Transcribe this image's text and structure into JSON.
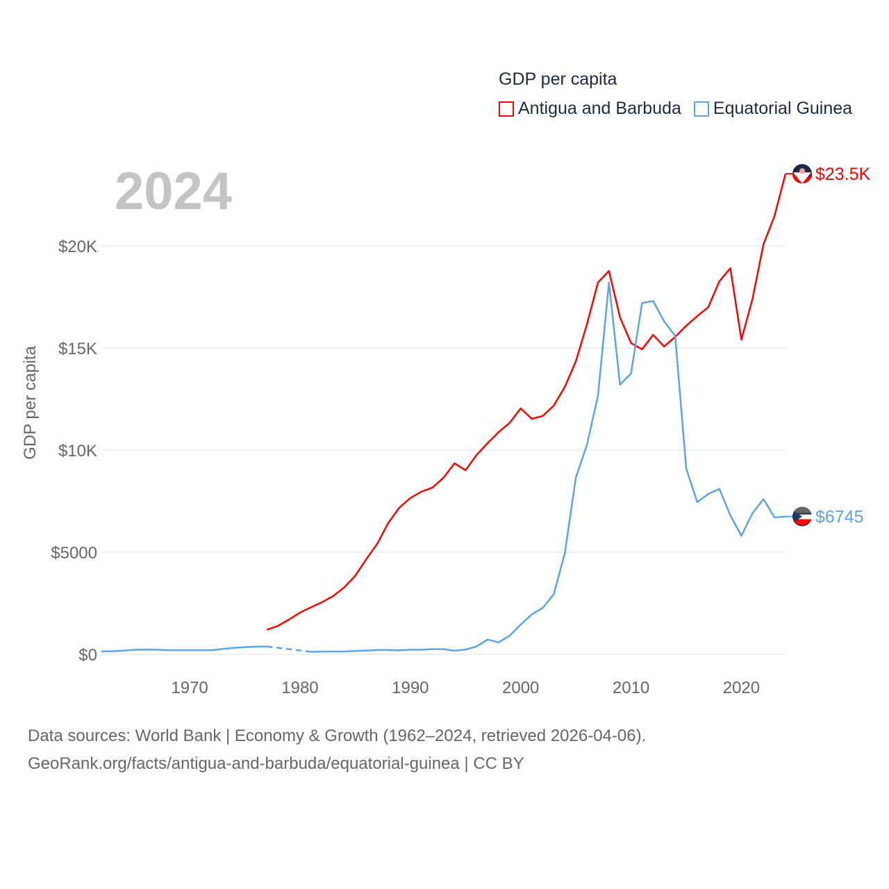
{
  "chart_data": {
    "type": "line",
    "title": "GDP per capita",
    "ylabel": "GDP per capita",
    "xlabel": "",
    "year_label": "2024",
    "xlim": [
      1962,
      2024
    ],
    "ylim": [
      0,
      23500
    ],
    "x_ticks": [
      1970,
      1980,
      1990,
      2000,
      2010,
      2020
    ],
    "y_ticks": [
      {
        "v": 0,
        "label": "$0"
      },
      {
        "v": 5000,
        "label": "$5000"
      },
      {
        "v": 10000,
        "label": "$10K"
      },
      {
        "v": 15000,
        "label": "$15K"
      },
      {
        "v": 20000,
        "label": "$20K"
      }
    ],
    "grid": true,
    "legend_position": "top-right",
    "series": [
      {
        "name": "Antigua and Barbuda",
        "color": "#ff0000",
        "end_label": "$23.5K",
        "start": 1977,
        "values": [
          1200,
          1390,
          1700,
          2040,
          2300,
          2550,
          2850,
          3270,
          3840,
          4650,
          5410,
          6430,
          7180,
          7650,
          7960,
          8160,
          8640,
          9350,
          9010,
          9760,
          10340,
          10880,
          11330,
          12040,
          11530,
          11670,
          12180,
          13090,
          14350,
          16150,
          18200,
          18770,
          16500,
          15240,
          14930,
          15640,
          15070,
          15540,
          16090,
          16560,
          17000,
          18260,
          18910,
          15410,
          17380,
          20070,
          21460,
          23530
        ]
      },
      {
        "name": "Equatorial Guinea",
        "color": "#5ba4ea",
        "end_label": "$6745",
        "start": 1962,
        "values": [
          140,
          150,
          180,
          220,
          230,
          220,
          200,
          200,
          200,
          200,
          200,
          260,
          310,
          350,
          370,
          380,
          null,
          null,
          null,
          120,
          130,
          130,
          130,
          160,
          180,
          210,
          210,
          190,
          220,
          220,
          250,
          250,
          170,
          230,
          380,
          720,
          580,
          910,
          1450,
          1950,
          2270,
          2940,
          4950,
          8650,
          10250,
          12650,
          18200,
          13200,
          13750,
          17200,
          17300,
          16300,
          15600,
          9100,
          7450,
          7850,
          8100,
          6800,
          5800,
          6900,
          7600,
          6700,
          6745
        ]
      }
    ]
  },
  "footer": {
    "line1": "Data sources: World Bank | Economy & Growth (1962–2024, retrieved 2026-04-06).",
    "line2": "GeoRank.org/facts/antigua-and-barbuda/equatorial-guinea | CC BY"
  }
}
